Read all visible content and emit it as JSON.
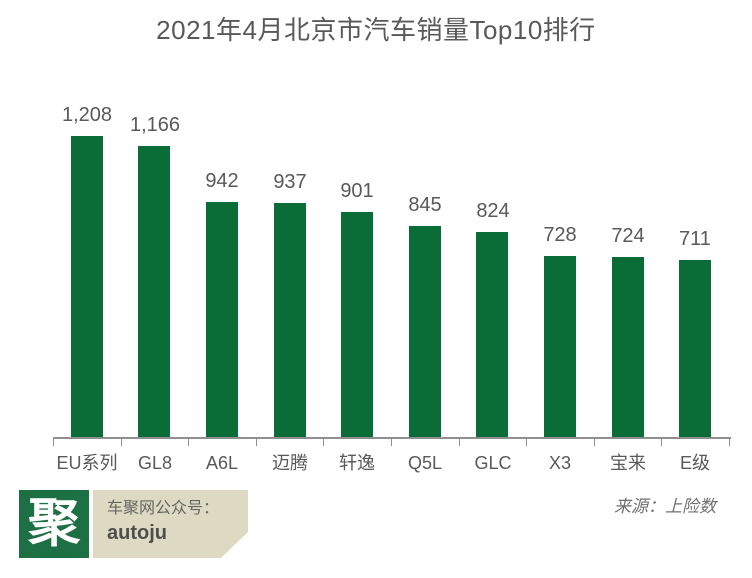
{
  "title": "2021年4月北京市汽车销量Top10排行",
  "chart_data": {
    "type": "bar",
    "categories": [
      "EU系列",
      "GL8",
      "A6L",
      "迈腾",
      "轩逸",
      "Q5L",
      "GLC",
      "X3",
      "宝来",
      "E级"
    ],
    "values": [
      1208,
      1166,
      942,
      937,
      901,
      845,
      824,
      728,
      724,
      711
    ],
    "value_labels": [
      "1,208",
      "1,166",
      "942",
      "937",
      "901",
      "845",
      "824",
      "728",
      "724",
      "711"
    ],
    "title": "2021年4月北京市汽车销量Top10排行",
    "xlabel": "",
    "ylabel": "",
    "ylim": [
      0,
      1300
    ],
    "grid": false,
    "legend": "none",
    "bar_color": "#0a6d38",
    "axis_color": "#8f8f8f",
    "label_color": "#595959"
  },
  "footer": {
    "logo_char": "聚",
    "account_label": "车聚网公众号：",
    "account_name": "autoju",
    "source": "来源：上险数"
  },
  "colors": {
    "bar": "#0a6d38",
    "logo_bg": "#1d7044",
    "account_bg": "#ddd9c3",
    "text": "#595959",
    "axis": "#8f8f8f"
  }
}
